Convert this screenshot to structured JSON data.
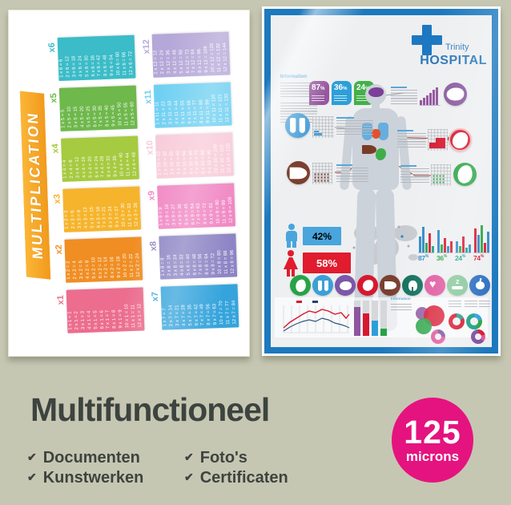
{
  "page": {
    "background_color": "#c6c7b2"
  },
  "bottom_section": {
    "title": "Multifunctioneel",
    "check_glyph": "✔",
    "features": [
      {
        "label": "Documenten"
      },
      {
        "label": "Kunstwerken"
      },
      {
        "label": "Foto's"
      },
      {
        "label": "Certificaten"
      }
    ],
    "thickness_badge": {
      "value": "125",
      "unit": "microns",
      "color": "#e5137f"
    }
  },
  "multiplication_poster": {
    "banner_text": "MULTIPLICATION",
    "banner_color": "#f6a525",
    "tables": [
      {
        "label": "x1",
        "color": "#ec6d8d",
        "rows": [
          "1 x 1 = 1",
          "2 x 1 = 2",
          "3 x 1 = 3",
          "4 x 1 = 4",
          "5 x 1 = 5",
          "6 x 1 = 6",
          "7 x 1 = 7",
          "8 x 1 = 8",
          "9 x 1 = 9",
          "10 x 1 = 10",
          "11 x 1 = 11",
          "12 x 1 = 12"
        ]
      },
      {
        "label": "x2",
        "color": "#f08e23",
        "rows": [
          "1 x 2 = 2",
          "2 x 2 = 4",
          "3 x 2 = 6",
          "4 x 2 = 8",
          "5 x 2 = 10",
          "6 x 2 = 12",
          "7 x 2 = 14",
          "8 x 2 = 16",
          "9 x 2 = 18",
          "10 x 2 = 20",
          "11 x 2 = 22",
          "12 x 2 = 24"
        ]
      },
      {
        "label": "x3",
        "color": "#f6b42c",
        "rows": [
          "1 x 3 = 3",
          "2 x 3 = 6",
          "3 x 3 = 9",
          "4 x 3 = 12",
          "5 x 3 = 15",
          "6 x 3 = 18",
          "7 x 3 = 21",
          "8 x 3 = 24",
          "9 x 3 = 27",
          "10 x 3 = 30",
          "11 x 3 = 33",
          "12 x 3 = 36"
        ]
      },
      {
        "label": "x4",
        "color": "#a6ca40",
        "rows": [
          "1 x 4 = 4",
          "2 x 4 = 8",
          "3 x 4 = 12",
          "4 x 4 = 16",
          "5 x 4 = 20",
          "6 x 4 = 24",
          "7 x 4 = 28",
          "8 x 4 = 32",
          "9 x 4 = 36",
          "10 x 4 = 40",
          "11 x 4 = 44",
          "12 x 4 = 48"
        ]
      },
      {
        "label": "x5",
        "color": "#6eb84c",
        "rows": [
          "1 x 5 = 5",
          "2 x 5 = 10",
          "3 x 5 = 15",
          "4 x 5 = 20",
          "5 x 5 = 25",
          "6 x 5 = 30",
          "7 x 5 = 35",
          "8 x 5 = 40",
          "9 x 5 = 45",
          "10 x 5 = 50",
          "11 x 5 = 55",
          "12 x 5 = 60"
        ]
      },
      {
        "label": "x6",
        "color": "#3bbcc8",
        "rows": [
          "1 x 6 = 6",
          "2 x 6 = 12",
          "3 x 6 = 18",
          "4 x 6 = 24",
          "5 x 6 = 30",
          "6 x 6 = 36",
          "7 x 6 = 42",
          "8 x 6 = 48",
          "9 x 6 = 54",
          "10 x 6 = 60",
          "11 x 6 = 66",
          "12 x 6 = 72"
        ]
      },
      {
        "label": "x7",
        "color": "#35a4dc",
        "rows": [
          "1 x 7 = 7",
          "2 x 7 = 14",
          "3 x 7 = 21",
          "4 x 7 = 28",
          "5 x 7 = 35",
          "6 x 7 = 42",
          "7 x 7 = 49",
          "8 x 7 = 56",
          "9 x 7 = 63",
          "10 x 7 = 70",
          "11 x 7 = 77",
          "12 x 7 = 84"
        ]
      },
      {
        "label": "x8",
        "color": "#8c84c4",
        "rows": [
          "1 x 8 = 8",
          "2 x 8 = 16",
          "3 x 8 = 24",
          "4 x 8 = 32",
          "5 x 8 = 40",
          "6 x 8 = 48",
          "7 x 8 = 56",
          "8 x 8 = 64",
          "9 x 8 = 72",
          "10 x 8 = 80",
          "11 x 8 = 88",
          "12 x 8 = 96"
        ]
      },
      {
        "label": "x9",
        "color": "#f084c2",
        "rows": [
          "1 x 9 = 9",
          "2 x 9 = 18",
          "3 x 9 = 27",
          "4 x 9 = 36",
          "5 x 9 = 45",
          "6 x 9 = 54",
          "7 x 9 = 63",
          "8 x 9 = 72",
          "9 x 9 = 81",
          "10 x 9 = 90",
          "11 x 9 = 99",
          "12 x 9 = 108"
        ]
      },
      {
        "label": "x10",
        "color": "#f8cbd9",
        "rows": [
          "1 x 10 = 10",
          "2 x 10 = 20",
          "3 x 10 = 30",
          "4 x 10 = 40",
          "5 x 10 = 50",
          "6 x 10 = 60",
          "7 x 10 = 70",
          "8 x 10 = 80",
          "9 x 10 = 90",
          "10 x 10 = 100",
          "11 x 10 = 110",
          "12 x 10 = 120"
        ]
      },
      {
        "label": "x11",
        "color": "#70d0f2",
        "rows": [
          "1 x 11 = 11",
          "2 x 11 = 22",
          "3 x 11 = 33",
          "4 x 11 = 44",
          "5 x 11 = 55",
          "6 x 11 = 66",
          "7 x 11 = 77",
          "8 x 11 = 88",
          "9 x 11 = 99",
          "10 x 11 = 110",
          "11 x 11 = 121",
          "12 x 11 = 132"
        ]
      },
      {
        "label": "x12",
        "color": "#b5a7d8",
        "rows": [
          "1 x 12 = 12",
          "2 x 12 = 24",
          "3 x 12 = 36",
          "4 x 12 = 48",
          "5 x 12 = 60",
          "6 x 12 = 72",
          "7 x 12 = 84",
          "8 x 12 = 96",
          "9 x 12 = 108",
          "10 x 12 = 120",
          "11 x 12 = 132",
          "12 x 12 = 144"
        ]
      }
    ]
  },
  "hospital_poster": {
    "border_color": "#1c79bd",
    "logo": {
      "name": "Trinity",
      "subtitle": "HOSPITAL",
      "cross_color": "#1d78c1"
    },
    "info_heading": "Information",
    "stat_badges": [
      {
        "value": "87",
        "unit": "%",
        "color": "#96579e"
      },
      {
        "value": "36",
        "unit": "%",
        "color": "#2d9fd8"
      },
      {
        "value": "24",
        "unit": "%",
        "color": "#44b049"
      }
    ],
    "gender_stats": [
      {
        "icon": "male",
        "value": "42%",
        "color": "#49a5dc",
        "text_color": "#16618f"
      },
      {
        "icon": "female",
        "value": "58%",
        "color": "#e01c2e",
        "text_color": "#ffffff"
      }
    ],
    "mini_bar_stats": [
      {
        "value": "87",
        "unit": "%",
        "color": "#2d86c7"
      },
      {
        "value": "36",
        "unit": "%",
        "color": "#27a344"
      },
      {
        "value": "24",
        "unit": "%",
        "color": "#16a085"
      },
      {
        "value": "74",
        "unit": "%",
        "color": "#d7182f"
      }
    ],
    "organs": [
      {
        "name": "stomach",
        "color": "#27a347"
      },
      {
        "name": "lungs",
        "color": "#3b9fd8"
      },
      {
        "name": "brain",
        "color": "#7d57a8"
      },
      {
        "name": "heart-organ",
        "color": "#d7182f"
      },
      {
        "name": "liver",
        "color": "#7a4030"
      },
      {
        "name": "tooth",
        "color": "#0e6e5c"
      },
      {
        "name": "heart",
        "color": "#e0569f"
      },
      {
        "name": "sleep",
        "color": "#86c79a"
      },
      {
        "name": "apple",
        "color": "#2a6fc0"
      }
    ]
  }
}
